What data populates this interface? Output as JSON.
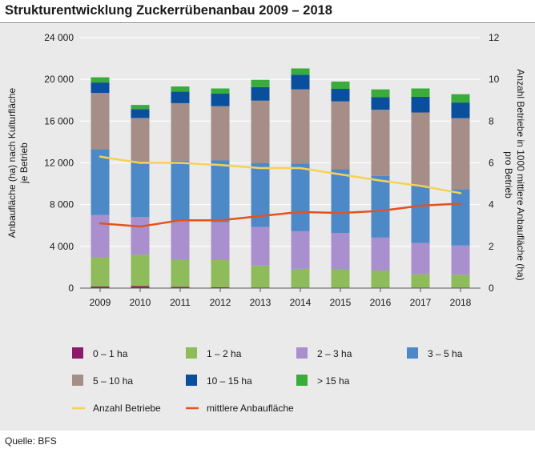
{
  "title": "Strukturentwicklung Zuckerrübenanbau 2009 – 2018",
  "source": "Quelle: BFS",
  "chart_data": {
    "type": "bar",
    "stacked": true,
    "categories": [
      "2009",
      "2010",
      "2011",
      "2012",
      "2013",
      "2014",
      "2015",
      "2016",
      "2017",
      "2018"
    ],
    "y_left": {
      "label": "Anbaufläche (ha) nach Kulturfläche je Betrieb",
      "label_lines": [
        "Anbaufläche (ha) nach Kulturfläche",
        "je Betrieb"
      ],
      "range": [
        0,
        24000
      ],
      "ticks": [
        0,
        4000,
        8000,
        12000,
        16000,
        20000,
        24000
      ],
      "tick_labels": [
        "0",
        "4 000",
        "8 000",
        "12 000",
        "16 000",
        "20 000",
        "24 000"
      ]
    },
    "y_right": {
      "label": "Anzahl Betriebe in 1000 mittlere Anbaufläche (ha) pro Betrieb",
      "label_lines": [
        "Anzahl Betriebe in 1000 mittlere Anbaufläche (ha)",
        "pro Betrieb"
      ],
      "range": [
        0,
        12
      ],
      "ticks": [
        0,
        2,
        4,
        6,
        8,
        10,
        12
      ],
      "tick_labels": [
        "0",
        "2",
        "4",
        "6",
        "8",
        "10",
        "12"
      ]
    },
    "series": [
      {
        "name": "0 – 1 ha",
        "color": "#8b1a6b",
        "values": [
          150,
          200,
          120,
          80,
          60,
          50,
          40,
          40,
          30,
          30
        ]
      },
      {
        "name": "1 – 2 ha",
        "color": "#8fbc5a",
        "values": [
          2800,
          3000,
          2600,
          2600,
          2100,
          1800,
          1800,
          1650,
          1300,
          1250
        ]
      },
      {
        "name": "2 – 3 ha",
        "color": "#a98fcd",
        "values": [
          4050,
          3600,
          3700,
          3650,
          3700,
          3600,
          3450,
          3150,
          3000,
          2800
        ]
      },
      {
        "name": "3 – 5 ha",
        "color": "#4e89c7",
        "values": [
          6300,
          5300,
          5800,
          5900,
          6100,
          6500,
          6100,
          5900,
          5500,
          5400
        ]
      },
      {
        "name": "5 – 10 ha",
        "color": "#a48e87",
        "values": [
          5400,
          4200,
          5500,
          5200,
          6000,
          7100,
          6500,
          6350,
          7000,
          6800
        ]
      },
      {
        "name": "10 – 15 ha",
        "color": "#0a4f9c",
        "values": [
          1000,
          850,
          1100,
          1200,
          1300,
          1400,
          1200,
          1200,
          1500,
          1500
        ]
      },
      {
        "name": "> 15 ha",
        "color": "#3aac3a",
        "values": [
          500,
          400,
          500,
          500,
          700,
          600,
          700,
          750,
          800,
          800
        ]
      }
    ],
    "lines": [
      {
        "name": "Anzahl Betriebe",
        "color": "#f7d154",
        "axis": "right",
        "values": [
          6.3,
          6.0,
          6.0,
          5.9,
          5.75,
          5.75,
          5.45,
          5.15,
          4.9,
          4.55
        ]
      },
      {
        "name": "mittlere Anbaufläche",
        "color": "#e2531f",
        "axis": "right",
        "values": [
          3.1,
          2.95,
          3.25,
          3.25,
          3.45,
          3.65,
          3.6,
          3.7,
          3.95,
          4.05
        ]
      }
    ],
    "legend_position": "bottom"
  }
}
